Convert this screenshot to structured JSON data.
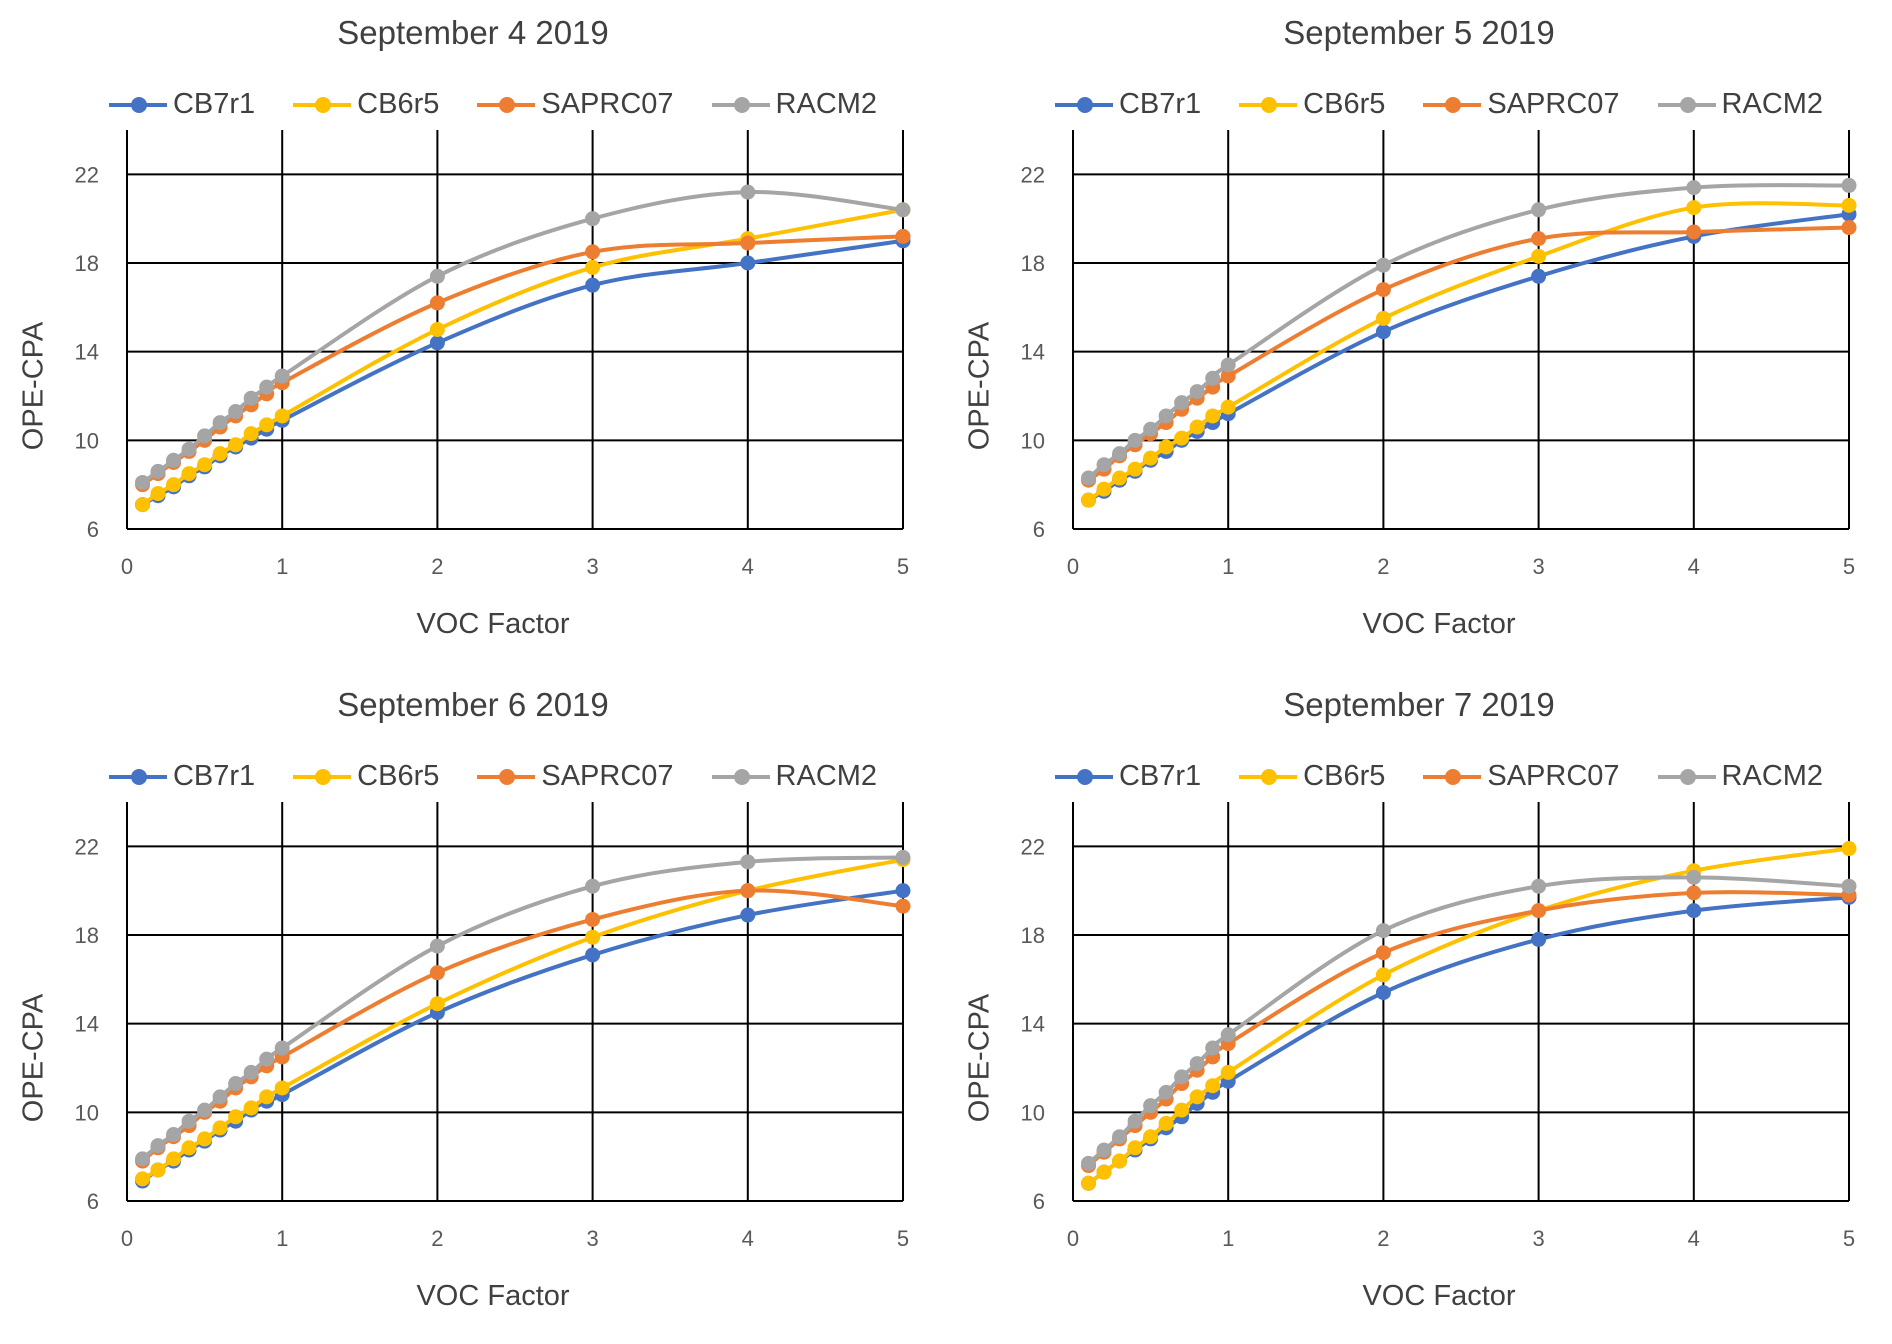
{
  "chart_data": [
    {
      "type": "line",
      "title": "September 4 2019",
      "xlabel": "VOC Factor",
      "ylabel": "OPE-CPA",
      "xlim": [
        0,
        5
      ],
      "ylim": [
        6,
        24
      ],
      "xticks": [
        0,
        1,
        2,
        3,
        4,
        5
      ],
      "yticks": [
        6,
        10,
        14,
        18,
        22
      ],
      "grid": true,
      "legend_position": "top",
      "x": [
        0.1,
        0.2,
        0.3,
        0.4,
        0.5,
        0.6,
        0.7,
        0.8,
        0.9,
        1,
        2,
        3,
        4,
        5
      ],
      "series": [
        {
          "name": "CB7r1",
          "color": "#4472C4",
          "values": [
            7.1,
            7.5,
            7.9,
            8.4,
            8.8,
            9.3,
            9.7,
            10.1,
            10.5,
            10.9,
            14.4,
            17.0,
            18.0,
            19.0
          ]
        },
        {
          "name": "CB6r5",
          "color": "#FFC000",
          "values": [
            7.1,
            7.6,
            8.0,
            8.5,
            8.9,
            9.4,
            9.8,
            10.3,
            10.7,
            11.1,
            15.0,
            17.8,
            19.1,
            20.4
          ]
        },
        {
          "name": "SAPRC07",
          "color": "#ED7D31",
          "values": [
            8.0,
            8.5,
            9.0,
            9.5,
            10.0,
            10.6,
            11.1,
            11.6,
            12.1,
            12.6,
            16.2,
            18.5,
            18.9,
            19.2
          ]
        },
        {
          "name": "RACM2",
          "color": "#A5A5A5",
          "values": [
            8.1,
            8.6,
            9.1,
            9.6,
            10.2,
            10.8,
            11.3,
            11.9,
            12.4,
            12.9,
            17.4,
            20.0,
            21.2,
            20.4
          ]
        }
      ]
    },
    {
      "type": "line",
      "title": "September 5 2019",
      "xlabel": "VOC Factor",
      "ylabel": "OPE-CPA",
      "xlim": [
        0,
        5
      ],
      "ylim": [
        6,
        24
      ],
      "xticks": [
        0,
        1,
        2,
        3,
        4,
        5
      ],
      "yticks": [
        6,
        10,
        14,
        18,
        22
      ],
      "grid": true,
      "legend_position": "top",
      "x": [
        0.1,
        0.2,
        0.3,
        0.4,
        0.5,
        0.6,
        0.7,
        0.8,
        0.9,
        1,
        2,
        3,
        4,
        5
      ],
      "series": [
        {
          "name": "CB7r1",
          "color": "#4472C4",
          "values": [
            7.3,
            7.7,
            8.2,
            8.6,
            9.1,
            9.5,
            10.0,
            10.4,
            10.8,
            11.2,
            14.9,
            17.4,
            19.2,
            20.2
          ]
        },
        {
          "name": "CB6r5",
          "color": "#FFC000",
          "values": [
            7.3,
            7.8,
            8.3,
            8.7,
            9.2,
            9.7,
            10.1,
            10.6,
            11.1,
            11.5,
            15.5,
            18.3,
            20.5,
            20.6
          ]
        },
        {
          "name": "SAPRC07",
          "color": "#ED7D31",
          "values": [
            8.2,
            8.7,
            9.3,
            9.8,
            10.3,
            10.8,
            11.4,
            11.9,
            12.4,
            12.9,
            16.8,
            19.1,
            19.4,
            19.6
          ]
        },
        {
          "name": "RACM2",
          "color": "#A5A5A5",
          "values": [
            8.3,
            8.9,
            9.4,
            10.0,
            10.5,
            11.1,
            11.7,
            12.2,
            12.8,
            13.4,
            17.9,
            20.4,
            21.4,
            21.5
          ]
        }
      ]
    },
    {
      "type": "line",
      "title": "September 6 2019",
      "xlabel": "VOC Factor",
      "ylabel": "OPE-CPA",
      "xlim": [
        0,
        5
      ],
      "ylim": [
        6,
        24
      ],
      "xticks": [
        0,
        1,
        2,
        3,
        4,
        5
      ],
      "yticks": [
        6,
        10,
        14,
        18,
        22
      ],
      "grid": true,
      "legend_position": "top",
      "x": [
        0.1,
        0.2,
        0.3,
        0.4,
        0.5,
        0.6,
        0.7,
        0.8,
        0.9,
        1,
        2,
        3,
        4,
        5
      ],
      "series": [
        {
          "name": "CB7r1",
          "color": "#4472C4",
          "values": [
            6.9,
            7.4,
            7.8,
            8.3,
            8.7,
            9.2,
            9.6,
            10.1,
            10.5,
            10.8,
            14.5,
            17.1,
            18.9,
            20.0
          ]
        },
        {
          "name": "CB6r5",
          "color": "#FFC000",
          "values": [
            7.0,
            7.4,
            7.9,
            8.4,
            8.8,
            9.3,
            9.8,
            10.2,
            10.7,
            11.1,
            14.9,
            17.9,
            20.0,
            21.4
          ]
        },
        {
          "name": "SAPRC07",
          "color": "#ED7D31",
          "values": [
            7.8,
            8.4,
            8.9,
            9.4,
            10.0,
            10.5,
            11.1,
            11.6,
            12.1,
            12.5,
            16.3,
            18.7,
            20.0,
            19.3
          ]
        },
        {
          "name": "RACM2",
          "color": "#A5A5A5",
          "values": [
            7.9,
            8.5,
            9.0,
            9.6,
            10.1,
            10.7,
            11.3,
            11.8,
            12.4,
            12.9,
            17.5,
            20.2,
            21.3,
            21.5
          ]
        }
      ]
    },
    {
      "type": "line",
      "title": "September 7 2019",
      "xlabel": "VOC Factor",
      "ylabel": "OPE-CPA",
      "xlim": [
        0,
        5
      ],
      "ylim": [
        6,
        24
      ],
      "xticks": [
        0,
        1,
        2,
        3,
        4,
        5
      ],
      "yticks": [
        6,
        10,
        14,
        18,
        22
      ],
      "grid": true,
      "legend_position": "top",
      "x": [
        0.1,
        0.2,
        0.3,
        0.4,
        0.5,
        0.6,
        0.7,
        0.8,
        0.9,
        1,
        2,
        3,
        4,
        5
      ],
      "series": [
        {
          "name": "CB7r1",
          "color": "#4472C4",
          "values": [
            6.8,
            7.3,
            7.8,
            8.3,
            8.8,
            9.3,
            9.8,
            10.4,
            10.9,
            11.4,
            15.4,
            17.8,
            19.1,
            19.7
          ]
        },
        {
          "name": "CB6r5",
          "color": "#FFC000",
          "values": [
            6.8,
            7.3,
            7.8,
            8.4,
            8.9,
            9.5,
            10.1,
            10.7,
            11.2,
            11.8,
            16.2,
            19.1,
            20.9,
            21.9
          ]
        },
        {
          "name": "SAPRC07",
          "color": "#ED7D31",
          "values": [
            7.6,
            8.2,
            8.8,
            9.4,
            10.0,
            10.6,
            11.3,
            11.9,
            12.5,
            13.1,
            17.2,
            19.1,
            19.9,
            19.8
          ]
        },
        {
          "name": "RACM2",
          "color": "#A5A5A5",
          "values": [
            7.7,
            8.3,
            8.9,
            9.6,
            10.3,
            10.9,
            11.6,
            12.2,
            12.9,
            13.5,
            18.2,
            20.2,
            20.6,
            20.2
          ]
        }
      ]
    }
  ]
}
